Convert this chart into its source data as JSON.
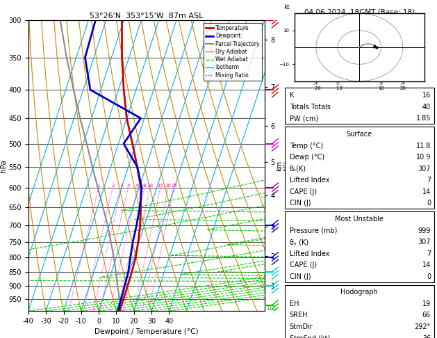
{
  "title_left": "53°26'N  353°15'W  87m ASL",
  "title_right": "04.06.2024  18GMT (Base: 18)",
  "xlabel": "Dewpoint / Temperature (°C)",
  "ylabel_left": "hPa",
  "pressure_ticks": [
    300,
    350,
    400,
    450,
    500,
    550,
    600,
    650,
    700,
    750,
    800,
    850,
    900,
    950
  ],
  "temp_min": -40,
  "temp_max": 40,
  "skew_factor": 45.0,
  "isotherm_color": "#00aaff",
  "dry_adiabat_color": "#cc8800",
  "wet_adiabat_color": "#00cc00",
  "mixing_ratio_color": "#ff00aa",
  "mixing_ratio_values": [
    1,
    2,
    3,
    4,
    6,
    8,
    10,
    15,
    20,
    25
  ],
  "mixing_ratio_labels": [
    "1",
    "2",
    "3",
    "4",
    "6",
    "8",
    "10",
    "15",
    "20",
    "25"
  ],
  "temperature_profile": {
    "pressure": [
      999,
      950,
      900,
      850,
      800,
      750,
      700,
      650,
      600,
      550,
      500,
      450,
      400,
      350,
      300
    ],
    "temperature": [
      11.8,
      11.8,
      11.7,
      11.5,
      11.0,
      9.5,
      7.5,
      4.5,
      1.0,
      -5.0,
      -12.0,
      -20.0,
      -27.0,
      -34.0,
      -41.0
    ]
  },
  "dewpoint_profile": {
    "pressure": [
      999,
      950,
      900,
      850,
      800,
      750,
      700,
      650,
      600,
      550,
      500,
      450,
      400,
      350,
      300
    ],
    "temperature": [
      10.9,
      10.5,
      10.0,
      9.5,
      8.0,
      6.5,
      5.5,
      4.0,
      1.5,
      -5.0,
      -17.0,
      -12.0,
      -46.0,
      -55.0,
      -56.0
    ]
  },
  "parcel_profile": {
    "pressure": [
      999,
      950,
      900,
      850,
      800,
      750,
      700,
      650,
      600,
      550,
      500,
      450,
      400,
      350,
      300
    ],
    "temperature": [
      11.8,
      9.5,
      6.0,
      2.5,
      -1.5,
      -6.0,
      -11.0,
      -17.0,
      -23.5,
      -30.5,
      -38.0,
      -46.5,
      -55.5,
      -65.5,
      -76.0
    ]
  },
  "temp_color": "#cc0000",
  "dewp_color": "#0000cc",
  "parcel_color": "#888888",
  "legend_items": [
    {
      "label": "Temperature",
      "color": "#cc0000",
      "lw": 2,
      "ls": "-"
    },
    {
      "label": "Dewpoint",
      "color": "#0000cc",
      "lw": 2,
      "ls": "-"
    },
    {
      "label": "Parcel Trajectory",
      "color": "#888888",
      "lw": 1.5,
      "ls": "-"
    },
    {
      "label": "Dry Adiabat",
      "color": "#cc8800",
      "lw": 1,
      "ls": "-"
    },
    {
      "label": "Wet Adiabat",
      "color": "#00cc00",
      "lw": 1,
      "ls": "--"
    },
    {
      "label": "Isotherm",
      "color": "#00aaff",
      "lw": 1,
      "ls": "-"
    },
    {
      "label": "Mixing Ratio",
      "color": "#ff00aa",
      "lw": 1,
      "ls": ":"
    }
  ],
  "km_ticks": [
    1,
    2,
    3,
    4,
    5,
    6,
    7,
    8
  ],
  "km_pressures": [
    900,
    795,
    705,
    620,
    540,
    465,
    395,
    325
  ],
  "wind_barb_pressures": [
    300,
    400,
    500,
    600,
    700,
    800,
    850,
    900,
    975
  ],
  "wind_barb_colors": [
    "#cc0000",
    "#cc0000",
    "#cc00cc",
    "#880088",
    "#0000cc",
    "#0000cc",
    "#00cccc",
    "#00cccc",
    "#00cc00"
  ],
  "wind_barb_label": "LCL",
  "right_panel": {
    "K": 16,
    "Totals_Totals": 40,
    "PW_cm": 1.85,
    "Surface_Temp": 11.8,
    "Surface_Dewp": 10.9,
    "Surface_theta_e": 307,
    "Surface_LiftedIndex": 7,
    "Surface_CAPE": 14,
    "Surface_CIN": 0,
    "MU_Pressure": 999,
    "MU_theta_e": 307,
    "MU_LiftedIndex": 7,
    "MU_CAPE": 14,
    "MU_CIN": 0,
    "Hodo_EH": 19,
    "Hodo_SREH": 66,
    "Hodo_StmDir": 292,
    "Hodo_StmSpd": 36
  },
  "background_color": "#ffffff",
  "pmin": 300,
  "pmax": 999
}
